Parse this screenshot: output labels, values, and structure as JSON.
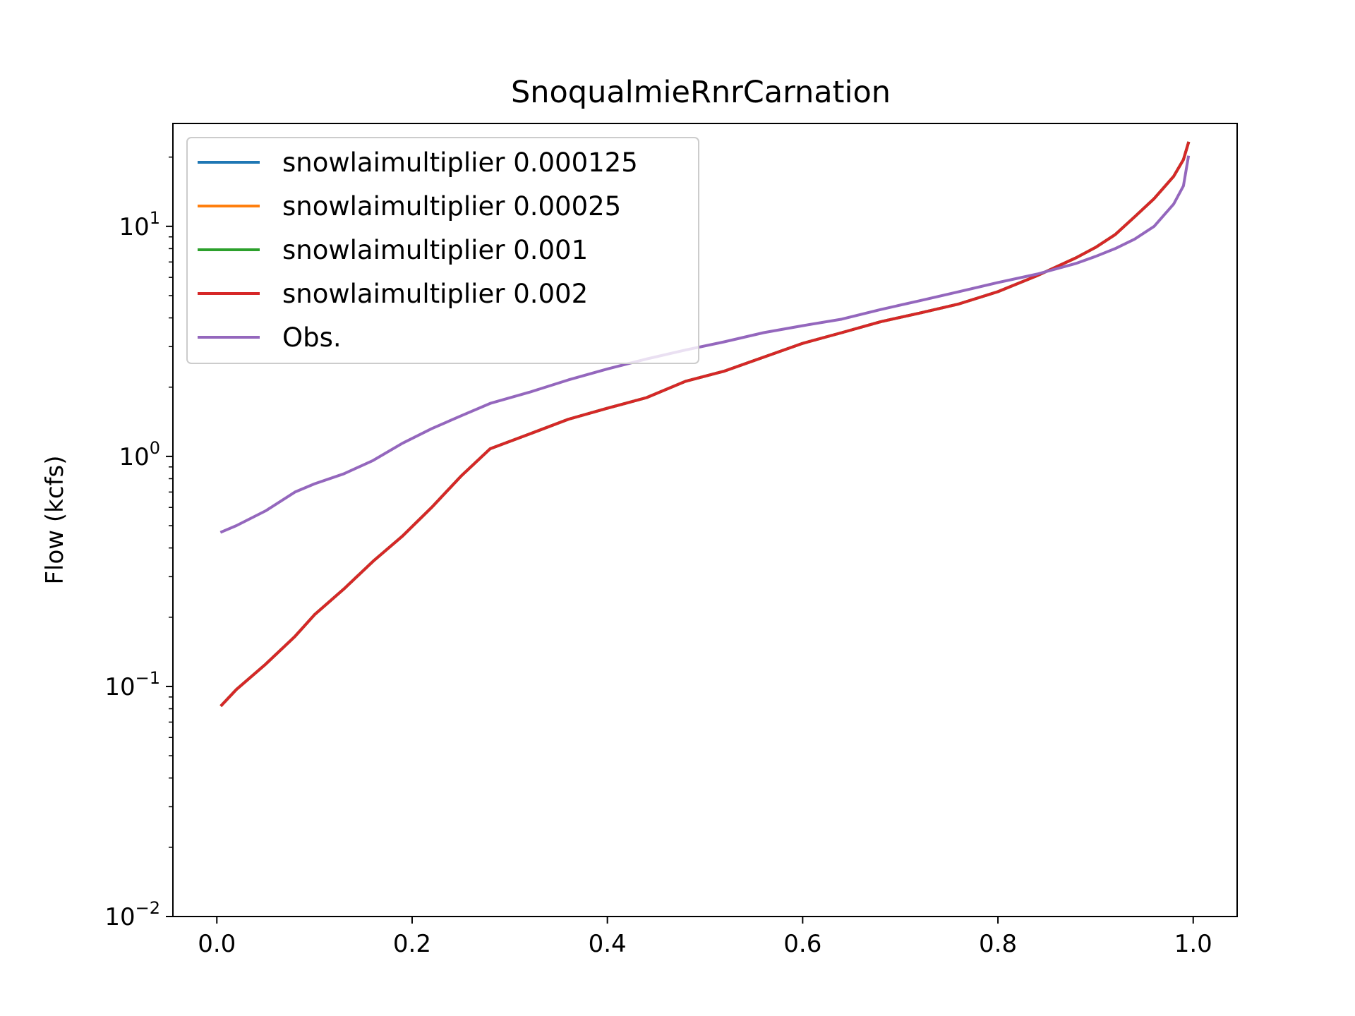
{
  "chart_data": {
    "type": "line",
    "title": "SnoqualmieRnrCarnation",
    "xlabel": "",
    "ylabel": "Flow (kcfs)",
    "yscale": "log",
    "xlim": [
      -0.045,
      1.045
    ],
    "ylim": [
      0.01,
      28
    ],
    "x_ticks": [
      {
        "value": 0.0,
        "label": "0.0"
      },
      {
        "value": 0.2,
        "label": "0.2"
      },
      {
        "value": 0.4,
        "label": "0.4"
      },
      {
        "value": 0.6,
        "label": "0.6"
      },
      {
        "value": 0.8,
        "label": "0.8"
      },
      {
        "value": 1.0,
        "label": "1.0"
      }
    ],
    "y_ticks": [
      {
        "value": 0.01,
        "base": "10",
        "exp": "−2"
      },
      {
        "value": 0.1,
        "base": "10",
        "exp": "−1"
      },
      {
        "value": 1,
        "base": "10",
        "exp": "0"
      },
      {
        "value": 10,
        "base": "10",
        "exp": "1"
      }
    ],
    "grid": false,
    "legend_position": "upper-left",
    "series": [
      {
        "name": "snowlaimultiplier 0.000125",
        "color": "#1f77b4",
        "x": [
          0.005,
          0.02,
          0.05,
          0.08,
          0.1,
          0.13,
          0.16,
          0.19,
          0.22,
          0.25,
          0.28,
          0.32,
          0.36,
          0.4,
          0.44,
          0.48,
          0.52,
          0.56,
          0.6,
          0.64,
          0.68,
          0.72,
          0.76,
          0.8,
          0.84,
          0.88,
          0.9,
          0.92,
          0.94,
          0.96,
          0.98,
          0.99,
          0.995
        ],
        "y": [
          0.083,
          0.097,
          0.125,
          0.165,
          0.205,
          0.265,
          0.35,
          0.45,
          0.6,
          0.82,
          1.08,
          1.25,
          1.45,
          1.62,
          1.8,
          2.12,
          2.35,
          2.7,
          3.1,
          3.45,
          3.85,
          4.2,
          4.6,
          5.2,
          6.1,
          7.3,
          8.1,
          9.2,
          11.0,
          13.2,
          16.5,
          19.5,
          23.0
        ]
      },
      {
        "name": "snowlaimultiplier 0.00025",
        "color": "#ff7f0e",
        "x": [
          0.005,
          0.02,
          0.05,
          0.08,
          0.1,
          0.13,
          0.16,
          0.19,
          0.22,
          0.25,
          0.28,
          0.32,
          0.36,
          0.4,
          0.44,
          0.48,
          0.52,
          0.56,
          0.6,
          0.64,
          0.68,
          0.72,
          0.76,
          0.8,
          0.84,
          0.88,
          0.9,
          0.92,
          0.94,
          0.96,
          0.98,
          0.99,
          0.995
        ],
        "y": [
          0.083,
          0.097,
          0.125,
          0.165,
          0.205,
          0.265,
          0.35,
          0.45,
          0.6,
          0.82,
          1.08,
          1.25,
          1.45,
          1.62,
          1.8,
          2.12,
          2.35,
          2.7,
          3.1,
          3.45,
          3.85,
          4.2,
          4.6,
          5.2,
          6.1,
          7.3,
          8.1,
          9.2,
          11.0,
          13.2,
          16.5,
          19.5,
          23.0
        ]
      },
      {
        "name": "snowlaimultiplier 0.001",
        "color": "#2ca02c",
        "x": [
          0.005,
          0.02,
          0.05,
          0.08,
          0.1,
          0.13,
          0.16,
          0.19,
          0.22,
          0.25,
          0.28,
          0.32,
          0.36,
          0.4,
          0.44,
          0.48,
          0.52,
          0.56,
          0.6,
          0.64,
          0.68,
          0.72,
          0.76,
          0.8,
          0.84,
          0.88,
          0.9,
          0.92,
          0.94,
          0.96,
          0.98,
          0.99,
          0.995
        ],
        "y": [
          0.083,
          0.097,
          0.125,
          0.165,
          0.205,
          0.265,
          0.35,
          0.45,
          0.6,
          0.82,
          1.08,
          1.25,
          1.45,
          1.62,
          1.8,
          2.12,
          2.35,
          2.7,
          3.1,
          3.45,
          3.85,
          4.2,
          4.6,
          5.2,
          6.1,
          7.3,
          8.1,
          9.2,
          11.0,
          13.2,
          16.5,
          19.5,
          23.0
        ]
      },
      {
        "name": "snowlaimultiplier 0.002",
        "color": "#d62728",
        "x": [
          0.005,
          0.02,
          0.05,
          0.08,
          0.1,
          0.13,
          0.16,
          0.19,
          0.22,
          0.25,
          0.28,
          0.32,
          0.36,
          0.4,
          0.44,
          0.48,
          0.52,
          0.56,
          0.6,
          0.64,
          0.68,
          0.72,
          0.76,
          0.8,
          0.84,
          0.88,
          0.9,
          0.92,
          0.94,
          0.96,
          0.98,
          0.99,
          0.995
        ],
        "y": [
          0.083,
          0.097,
          0.125,
          0.165,
          0.205,
          0.265,
          0.35,
          0.45,
          0.6,
          0.82,
          1.08,
          1.25,
          1.45,
          1.62,
          1.8,
          2.12,
          2.35,
          2.7,
          3.1,
          3.45,
          3.85,
          4.2,
          4.6,
          5.2,
          6.1,
          7.3,
          8.1,
          9.2,
          11.0,
          13.2,
          16.5,
          19.5,
          23.0
        ]
      },
      {
        "name": "Obs.",
        "color": "#9467bd",
        "x": [
          0.005,
          0.02,
          0.05,
          0.08,
          0.1,
          0.13,
          0.16,
          0.19,
          0.22,
          0.25,
          0.28,
          0.32,
          0.36,
          0.4,
          0.44,
          0.48,
          0.52,
          0.56,
          0.6,
          0.64,
          0.68,
          0.72,
          0.76,
          0.8,
          0.84,
          0.88,
          0.9,
          0.92,
          0.94,
          0.96,
          0.98,
          0.99,
          0.995
        ],
        "y": [
          0.47,
          0.5,
          0.58,
          0.7,
          0.76,
          0.84,
          0.96,
          1.14,
          1.32,
          1.5,
          1.7,
          1.9,
          2.15,
          2.4,
          2.65,
          2.9,
          3.15,
          3.45,
          3.7,
          3.95,
          4.35,
          4.75,
          5.2,
          5.7,
          6.2,
          6.9,
          7.4,
          8.0,
          8.8,
          10.0,
          12.5,
          15.0,
          20.0
        ]
      }
    ]
  }
}
